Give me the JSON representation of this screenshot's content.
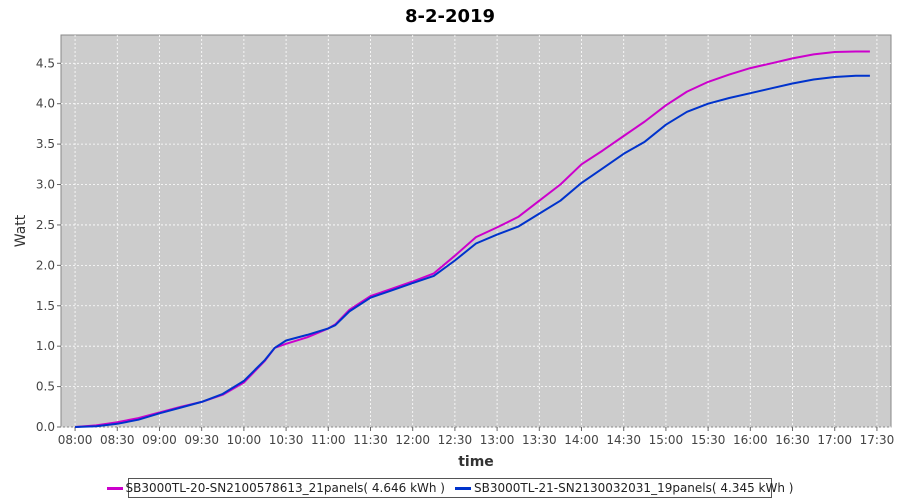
{
  "chart_data": {
    "type": "line",
    "title": "8-2-2019",
    "xlabel": "time",
    "ylabel": "Watt",
    "xlim": [
      "07:50",
      "17:40"
    ],
    "ylim": [
      0,
      4.85
    ],
    "x_ticks": [
      "08:00",
      "08:30",
      "09:00",
      "09:30",
      "10:00",
      "10:30",
      "11:00",
      "11:30",
      "12:00",
      "12:30",
      "13:00",
      "13:30",
      "14:00",
      "14:30",
      "15:00",
      "15:30",
      "16:00",
      "16:30",
      "17:00",
      "17:30"
    ],
    "y_ticks": [
      "0.0",
      "0.5",
      "1.0",
      "1.5",
      "2.0",
      "2.5",
      "3.0",
      "3.5",
      "4.0",
      "4.5"
    ],
    "grid": true,
    "legend_position": "bottom",
    "series": [
      {
        "name": "SB3000TL-20-SN2100578613_21panels( 4.646 kWh )",
        "color": "#cc00cc",
        "x": [
          "08:00",
          "08:15",
          "08:30",
          "08:45",
          "09:00",
          "09:15",
          "09:30",
          "09:45",
          "10:00",
          "10:15",
          "10:22",
          "10:30",
          "10:45",
          "11:00",
          "11:05",
          "11:15",
          "11:30",
          "11:45",
          "12:00",
          "12:15",
          "12:30",
          "12:45",
          "13:00",
          "13:15",
          "13:30",
          "13:45",
          "14:00",
          "14:15",
          "14:30",
          "14:45",
          "15:00",
          "15:15",
          "15:30",
          "15:45",
          "16:00",
          "16:15",
          "16:30",
          "16:45",
          "17:00",
          "17:15",
          "17:25"
        ],
        "values": [
          0.0,
          0.02,
          0.06,
          0.11,
          0.18,
          0.25,
          0.31,
          0.4,
          0.55,
          0.82,
          0.98,
          1.03,
          1.11,
          1.22,
          1.27,
          1.45,
          1.62,
          1.71,
          1.8,
          1.9,
          2.12,
          2.35,
          2.47,
          2.6,
          2.8,
          3.0,
          3.25,
          3.42,
          3.6,
          3.78,
          3.98,
          4.15,
          4.27,
          4.36,
          4.44,
          4.5,
          4.56,
          4.61,
          4.64,
          4.646,
          4.646
        ]
      },
      {
        "name": "SB3000TL-21-SN2130032031_19panels( 4.345 kWh )",
        "color": "#0033cc",
        "x": [
          "08:00",
          "08:15",
          "08:30",
          "08:45",
          "09:00",
          "09:15",
          "09:30",
          "09:45",
          "10:00",
          "10:15",
          "10:22",
          "10:30",
          "10:45",
          "11:00",
          "11:05",
          "11:15",
          "11:30",
          "11:45",
          "12:00",
          "12:15",
          "12:30",
          "12:45",
          "13:00",
          "13:15",
          "13:30",
          "13:45",
          "14:00",
          "14:15",
          "14:30",
          "14:45",
          "15:00",
          "15:15",
          "15:30",
          "15:45",
          "16:00",
          "16:15",
          "16:30",
          "16:45",
          "17:00",
          "17:15",
          "17:25"
        ],
        "values": [
          0.0,
          0.01,
          0.04,
          0.09,
          0.17,
          0.24,
          0.31,
          0.41,
          0.57,
          0.83,
          0.98,
          1.07,
          1.14,
          1.22,
          1.26,
          1.43,
          1.6,
          1.69,
          1.78,
          1.87,
          2.06,
          2.27,
          2.38,
          2.48,
          2.64,
          2.8,
          3.02,
          3.2,
          3.38,
          3.53,
          3.74,
          3.9,
          4.0,
          4.07,
          4.13,
          4.19,
          4.25,
          4.3,
          4.33,
          4.345,
          4.345
        ]
      }
    ]
  }
}
